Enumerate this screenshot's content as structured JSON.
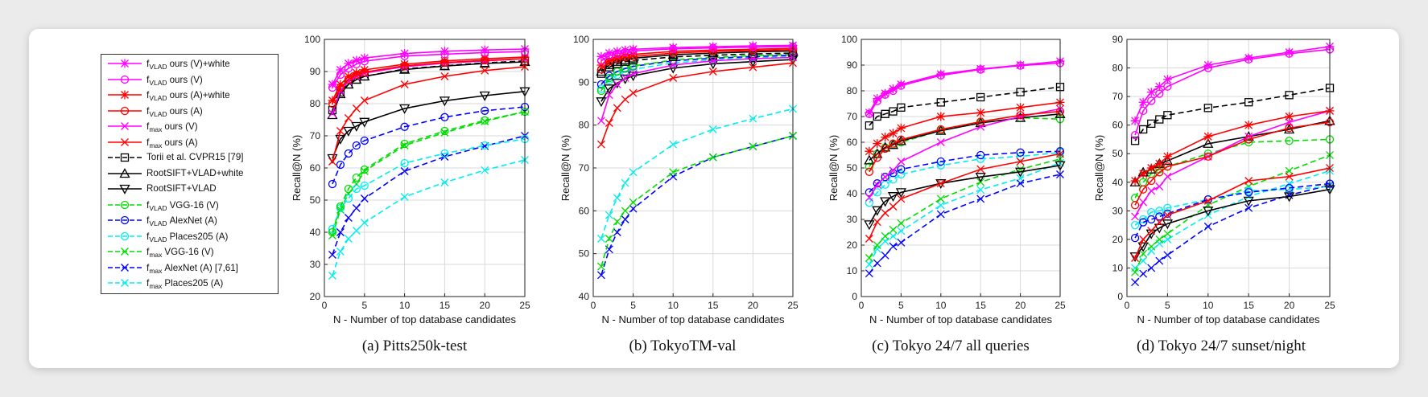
{
  "legend": [
    {
      "f": "f",
      "sub": "VLAD",
      "text": "ours (V)+white",
      "color": "#ff00ff",
      "marker": "star",
      "dash": false
    },
    {
      "f": "f",
      "sub": "VLAD",
      "text": "ours (V)",
      "color": "#ff00ff",
      "marker": "circle",
      "dash": false
    },
    {
      "f": "f",
      "sub": "VLAD",
      "text": "ours (A)+white",
      "color": "#ff0000",
      "marker": "star",
      "dash": false
    },
    {
      "f": "f",
      "sub": "VLAD",
      "text": "ours (A)",
      "color": "#ff0000",
      "marker": "circle",
      "dash": false
    },
    {
      "f": "f",
      "sub": "max",
      "text": "ours (V)",
      "color": "#ff00ff",
      "marker": "x",
      "dash": false
    },
    {
      "f": "f",
      "sub": "max",
      "text": "ours (A)",
      "color": "#ff0000",
      "marker": "x",
      "dash": false
    },
    {
      "f": "",
      "sub": "",
      "text": "Torii et al. CVPR15 [79]",
      "color": "#000000",
      "marker": "square",
      "dash": true
    },
    {
      "f": "",
      "sub": "",
      "text": "RootSIFT+VLAD+white",
      "color": "#000000",
      "marker": "triangle",
      "dash": false
    },
    {
      "f": "",
      "sub": "",
      "text": "RootSIFT+VLAD",
      "color": "#000000",
      "marker": "triangledown",
      "dash": false
    },
    {
      "f": "f",
      "sub": "VLAD",
      "text": "VGG-16 (V)",
      "color": "#00dd00",
      "marker": "circle",
      "dash": true
    },
    {
      "f": "f",
      "sub": "VLAD",
      "text": "AlexNet (A)",
      "color": "#0000ff",
      "marker": "circle",
      "dash": true
    },
    {
      "f": "f",
      "sub": "VLAD",
      "text": "Places205 (A)",
      "color": "#00eeee",
      "marker": "circle",
      "dash": true
    },
    {
      "f": "f",
      "sub": "max",
      "text": "VGG-16 (V)",
      "color": "#00dd00",
      "marker": "x",
      "dash": true
    },
    {
      "f": "f",
      "sub": "max",
      "text": "AlexNet (A) [7,61]",
      "color": "#0000ff",
      "marker": "x",
      "dash": true
    },
    {
      "f": "f",
      "sub": "max",
      "text": "Places205 (A)",
      "color": "#00eeee",
      "marker": "x",
      "dash": true
    }
  ],
  "captions": [
    "(a) Pitts250k-test",
    "(b) TokyoTM-val",
    "(c) Tokyo 24/7 all queries",
    "(d) Tokyo 24/7 sunset/night"
  ],
  "chart_data": [
    {
      "type": "line",
      "title": "(a) Pitts250k-test",
      "xlabel": "N - Number of top database candidates",
      "ylabel": "Recall@N (%)",
      "x": [
        1,
        2,
        3,
        4,
        5,
        10,
        15,
        20,
        25
      ],
      "xlim": [
        0,
        25
      ],
      "ylim": [
        20,
        100
      ],
      "xticks": [
        0,
        5,
        10,
        15,
        20,
        25
      ],
      "yticks": [
        20,
        30,
        40,
        50,
        60,
        70,
        80,
        90,
        100
      ],
      "grid": true,
      "series": [
        {
          "name": "fVLAD ours (V)+white",
          "values": [
            86,
            90.5,
            92.5,
            93.5,
            94.2,
            95.6,
            96.3,
            96.7,
            97
          ]
        },
        {
          "name": "fVLAD ours (V)",
          "values": [
            85,
            89,
            91,
            92.3,
            93.2,
            94.8,
            95.4,
            95.9,
            96.2
          ]
        },
        {
          "name": "fVLAD ours (A)+white",
          "values": [
            81,
            86,
            88.5,
            89.6,
            90.5,
            92.3,
            93.3,
            94,
            94.5
          ]
        },
        {
          "name": "fVLAD ours (A)",
          "values": [
            80,
            85,
            87.5,
            89,
            89.8,
            91.8,
            92.8,
            93.5,
            94
          ]
        },
        {
          "name": "fmax ours (V)",
          "values": [
            77,
            84,
            87,
            88.5,
            89.5,
            91.5,
            92.6,
            93.3,
            94
          ]
        },
        {
          "name": "fmax ours (A)",
          "values": [
            62,
            71.5,
            75.5,
            78.5,
            81,
            86,
            88.5,
            90.3,
            91.5
          ]
        },
        {
          "name": "Torii et al. CVPR15 [79]",
          "values": [
            78,
            83.5,
            86,
            87.5,
            88.5,
            90.8,
            91.8,
            92.7,
            93.3
          ]
        },
        {
          "name": "RootSIFT+VLAD+white",
          "values": [
            76.5,
            83,
            86,
            87.5,
            88.5,
            90.6,
            91.7,
            92.5,
            93
          ]
        },
        {
          "name": "RootSIFT+VLAD",
          "values": [
            63,
            69,
            71.5,
            73,
            74.3,
            78.5,
            80.9,
            82.5,
            83.8
          ]
        },
        {
          "name": "fVLAD VGG-16 (V)",
          "values": [
            40,
            48,
            53.5,
            57,
            59.5,
            67.5,
            71.5,
            74.8,
            77.5
          ]
        },
        {
          "name": "fVLAD AlexNet (A)",
          "values": [
            55,
            61,
            64.5,
            67,
            68.5,
            72.8,
            75.8,
            77.8,
            79
          ]
        },
        {
          "name": "fVLAD Places205 (A)",
          "values": [
            41,
            47.5,
            50.5,
            53.5,
            54.5,
            61.5,
            64.5,
            67,
            69
          ]
        },
        {
          "name": "fmax VGG-16 (V)",
          "values": [
            39,
            47,
            52,
            55,
            59,
            67,
            71,
            74.5,
            77.5
          ]
        },
        {
          "name": "fmax AlexNet (A) [7,61]",
          "values": [
            33,
            40,
            44.5,
            47.5,
            50.5,
            59,
            63.5,
            66.8,
            70
          ]
        },
        {
          "name": "fmax Places205 (A)",
          "values": [
            26.5,
            34,
            38,
            40.5,
            43,
            51,
            55.5,
            59.3,
            62.5
          ]
        }
      ]
    },
    {
      "type": "line",
      "title": "(b) TokyoTM-val",
      "xlabel": "N - Number of top database candidates",
      "ylabel": "Recall@N (%)",
      "x": [
        1,
        2,
        3,
        4,
        5,
        10,
        15,
        20,
        25
      ],
      "xlim": [
        0,
        25
      ],
      "ylim": [
        40,
        100
      ],
      "xticks": [
        0,
        5,
        10,
        15,
        20,
        25
      ],
      "yticks": [
        40,
        50,
        60,
        70,
        80,
        90,
        100
      ],
      "grid": true,
      "series": [
        {
          "name": "fVLAD ours (V)+white",
          "values": [
            96,
            96.8,
            97.2,
            97.5,
            97.7,
            98.1,
            98.3,
            98.5,
            98.6
          ]
        },
        {
          "name": "fVLAD ours (V)",
          "values": [
            95,
            96.2,
            96.7,
            97,
            97.3,
            97.8,
            98,
            98.2,
            98.3
          ]
        },
        {
          "name": "fVLAD ours (A)+white",
          "values": [
            94,
            95.2,
            95.8,
            96.2,
            96.5,
            97.2,
            97.5,
            97.7,
            97.9
          ]
        },
        {
          "name": "fVLAD ours (A)",
          "values": [
            93,
            94.8,
            95.4,
            95.8,
            96,
            96.8,
            97.2,
            97.4,
            97.6
          ]
        },
        {
          "name": "fmax ours (V)",
          "values": [
            81,
            87,
            89.5,
            91,
            92,
            94,
            95,
            95.5,
            95.8
          ]
        },
        {
          "name": "fmax ours (A)",
          "values": [
            75.5,
            80.5,
            84,
            86,
            87.5,
            91,
            92.5,
            93.5,
            94.5
          ]
        },
        {
          "name": "Torii et al. CVPR15 [79]",
          "values": [
            92,
            93.5,
            94.3,
            94.8,
            95.1,
            95.9,
            96.3,
            96.6,
            96.8
          ]
        },
        {
          "name": "RootSIFT+VLAD+white",
          "values": [
            92.5,
            94,
            94.8,
            95.2,
            95.6,
            96.4,
            96.8,
            97.1,
            97.3
          ]
        },
        {
          "name": "RootSIFT+VLAD",
          "values": [
            85.5,
            88.5,
            89.8,
            90.8,
            91.5,
            93.3,
            94.3,
            94.8,
            95.3
          ]
        },
        {
          "name": "fVLAD VGG-16 (V)",
          "values": [
            88,
            91,
            92.5,
            93.3,
            93.8,
            95.2,
            95.8,
            96.2,
            96.5
          ]
        },
        {
          "name": "fVLAD AlexNet (A)",
          "values": [
            89.5,
            91.5,
            92.5,
            93.2,
            93.7,
            95,
            95.6,
            96,
            96.3
          ]
        },
        {
          "name": "fVLAD Places205 (A)",
          "values": [
            88.5,
            90.5,
            91.7,
            92.5,
            93,
            94.5,
            95.2,
            95.7,
            96
          ]
        },
        {
          "name": "fmax VGG-16 (V)",
          "values": [
            47,
            53.5,
            57.5,
            60,
            62,
            69,
            72.5,
            75,
            77.5
          ]
        },
        {
          "name": "fmax AlexNet (A) [7,61]",
          "values": [
            45,
            51,
            55,
            58,
            60.5,
            68,
            72.5,
            75,
            77.5
          ]
        },
        {
          "name": "fmax Places205 (A)",
          "values": [
            53.5,
            59,
            63,
            66.5,
            69,
            75.5,
            79,
            81.5,
            83.8
          ]
        }
      ]
    },
    {
      "type": "line",
      "title": "(c) Tokyo 24/7 all queries",
      "xlabel": "N - Number of top database candidates",
      "ylabel": "Recall@N (%)",
      "x": [
        1,
        2,
        3,
        4,
        5,
        10,
        15,
        20,
        25
      ],
      "xlim": [
        0,
        25
      ],
      "ylim": [
        0,
        100
      ],
      "xticks": [
        0,
        5,
        10,
        15,
        20,
        25
      ],
      "yticks": [
        0,
        10,
        20,
        30,
        40,
        50,
        60,
        70,
        80,
        90,
        100
      ],
      "grid": true,
      "series": [
        {
          "name": "fVLAD ours (V)+white",
          "values": [
            71.5,
            77,
            79,
            80.8,
            82.5,
            86.5,
            88.5,
            90,
            91.5
          ]
        },
        {
          "name": "fVLAD ours (V)",
          "values": [
            71,
            76,
            78.5,
            80,
            82,
            86,
            88.3,
            89.8,
            90.8
          ]
        },
        {
          "name": "fVLAD ours (A)+white",
          "values": [
            56.5,
            59.5,
            62,
            63.5,
            65.5,
            70,
            71.5,
            73.5,
            75.5
          ]
        },
        {
          "name": "fVLAD ours (A)",
          "values": [
            48.5,
            54,
            57.5,
            59.5,
            61,
            65,
            68,
            70.5,
            72
          ]
        },
        {
          "name": "fmax ours (V)",
          "values": [
            38.5,
            43.5,
            46.5,
            49,
            52.5,
            60,
            66,
            70,
            73
          ]
        },
        {
          "name": "fmax ours (A)",
          "values": [
            22.5,
            29,
            32.5,
            35,
            38,
            44,
            49.5,
            52.5,
            55.5
          ]
        },
        {
          "name": "Torii et al. CVPR15 [79]",
          "values": [
            66.5,
            70,
            71,
            72,
            73.5,
            75.5,
            77.5,
            79.5,
            81.5
          ]
        },
        {
          "name": "RootSIFT+VLAD+white",
          "values": [
            53,
            55.5,
            58,
            59,
            60.5,
            64.5,
            67.5,
            69.5,
            71
          ]
        },
        {
          "name": "RootSIFT+VLAD",
          "values": [
            28,
            33.5,
            37,
            39,
            40.5,
            44,
            46.5,
            48.5,
            51
          ]
        },
        {
          "name": "fVLAD VGG-16 (V)",
          "values": [
            50.5,
            55.5,
            58,
            59,
            60,
            64.5,
            67.5,
            69.5,
            69
          ]
        },
        {
          "name": "fVLAD AlexNet (A)",
          "values": [
            40.5,
            44,
            46.5,
            48,
            49.5,
            52.5,
            55,
            56,
            56.5
          ]
        },
        {
          "name": "fVLAD Places205 (A)",
          "values": [
            36.5,
            40.5,
            43.5,
            45.5,
            47.5,
            51,
            53.5,
            54.5,
            56
          ]
        },
        {
          "name": "fmax VGG-16 (V)",
          "values": [
            15,
            20,
            23.5,
            26,
            28.5,
            38,
            44.5,
            49.5,
            53.5
          ]
        },
        {
          "name": "fmax AlexNet (A) [7,61]",
          "values": [
            9,
            13,
            16,
            19.5,
            21,
            32,
            38,
            44,
            47.5
          ]
        },
        {
          "name": "fmax Places205 (A)",
          "values": [
            12.5,
            18.5,
            21.5,
            23.5,
            25.5,
            35.5,
            41.5,
            46,
            52
          ]
        }
      ]
    },
    {
      "type": "line",
      "title": "(d) Tokyo 24/7 sunset/night",
      "xlabel": "N - Number of top database candidates",
      "ylabel": "Recall@N (%)",
      "x": [
        1,
        2,
        3,
        4,
        5,
        10,
        15,
        20,
        25
      ],
      "xlim": [
        0,
        25
      ],
      "ylim": [
        0,
        90
      ],
      "xticks": [
        0,
        5,
        10,
        15,
        20,
        25
      ],
      "yticks": [
        0,
        10,
        20,
        30,
        40,
        50,
        60,
        70,
        80,
        90
      ],
      "grid": true,
      "series": [
        {
          "name": "fVLAD ours (V)+white",
          "values": [
            61.5,
            68,
            71.5,
            73.5,
            76,
            81,
            83.5,
            85.5,
            87.5
          ]
        },
        {
          "name": "fVLAD ours (V)",
          "values": [
            56.5,
            65,
            68.5,
            71,
            73.5,
            80,
            83,
            85,
            86.5
          ]
        },
        {
          "name": "fVLAD ours (A)+white",
          "values": [
            40.5,
            43,
            45,
            46.5,
            49,
            56,
            60,
            63,
            65
          ]
        },
        {
          "name": "fVLAD ours (A)",
          "values": [
            32,
            37.5,
            40.5,
            43.5,
            45.5,
            49,
            55,
            59,
            61
          ]
        },
        {
          "name": "fmax ours (V)",
          "values": [
            28,
            33,
            37,
            38.5,
            42,
            49,
            56,
            61,
            65
          ]
        },
        {
          "name": "fmax ours (A)",
          "values": [
            13.5,
            20,
            23,
            26,
            28.5,
            33.5,
            40.5,
            42,
            45
          ]
        },
        {
          "name": "Torii et al. CVPR15 [79]",
          "values": [
            54.5,
            58.5,
            60.5,
            62,
            63.5,
            66,
            68,
            70.5,
            73
          ]
        },
        {
          "name": "RootSIFT+VLAD+white",
          "values": [
            40,
            43.5,
            44.5,
            46.5,
            47.5,
            53.5,
            56,
            58.5,
            61.5
          ]
        },
        {
          "name": "RootSIFT+VLAD",
          "values": [
            14,
            17.5,
            22,
            24,
            25.5,
            30,
            33.5,
            35,
            37.5
          ]
        },
        {
          "name": "fVLAD VGG-16 (V)",
          "values": [
            34.5,
            40,
            43,
            44.5,
            45.5,
            50,
            54,
            54.5,
            55
          ]
        },
        {
          "name": "fVLAD AlexNet (A)",
          "values": [
            20.5,
            26,
            27,
            28,
            29,
            34,
            36.5,
            38,
            39.5
          ]
        },
        {
          "name": "fVLAD Places205 (A)",
          "values": [
            25,
            27,
            29.5,
            30,
            31,
            34,
            37,
            37.5,
            38.5
          ]
        },
        {
          "name": "fmax VGG-16 (V)",
          "values": [
            8.5,
            15,
            17.5,
            20,
            22,
            32,
            38.5,
            44,
            49.5
          ]
        },
        {
          "name": "fmax AlexNet (A) [7,61]",
          "values": [
            5,
            8,
            10,
            12.5,
            14.5,
            24.5,
            31,
            35.5,
            39
          ]
        },
        {
          "name": "fmax Places205 (A)",
          "values": [
            10,
            12.5,
            16,
            18.5,
            20,
            28.5,
            35,
            39.5,
            44
          ]
        }
      ]
    }
  ]
}
